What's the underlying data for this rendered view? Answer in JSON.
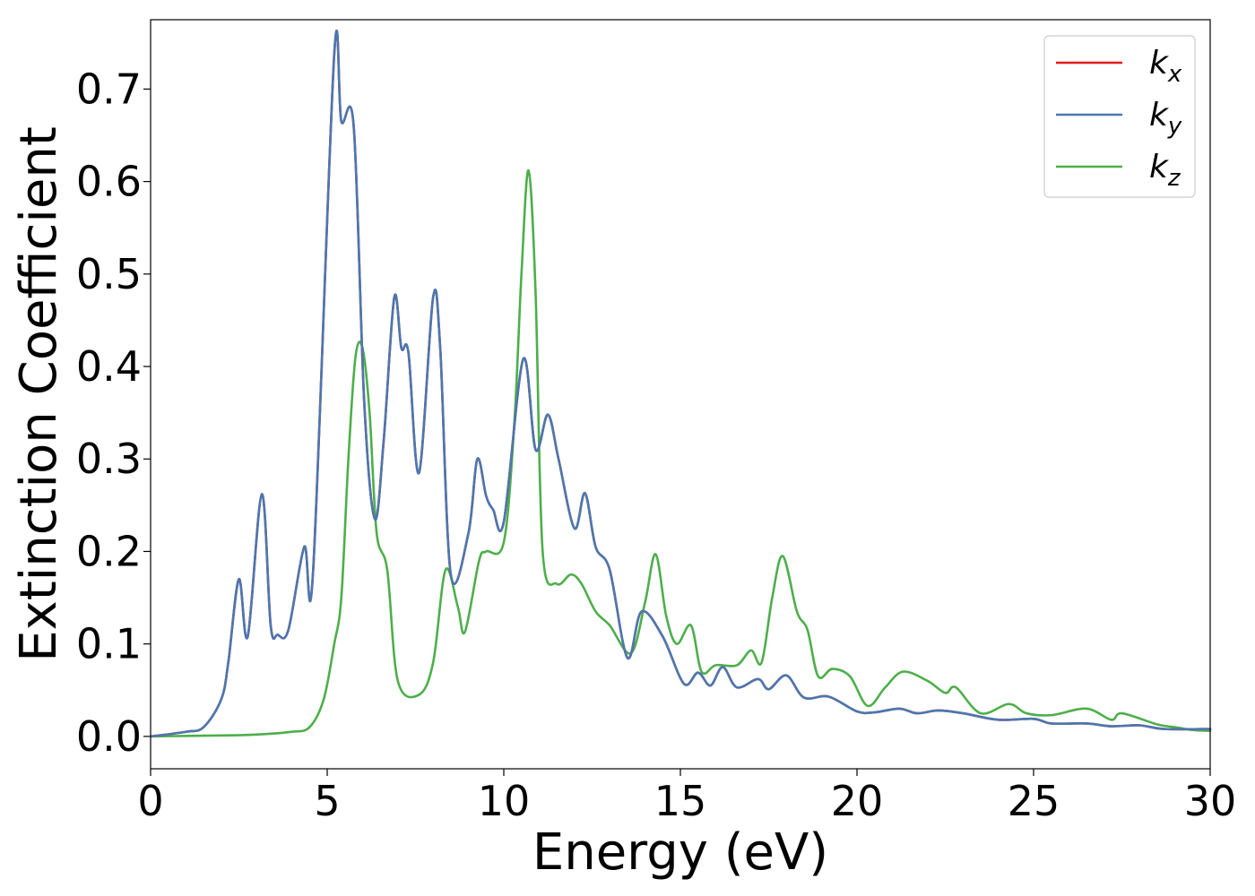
{
  "chart_data": {
    "type": "line",
    "title": "",
    "xlabel": "Energy (eV)",
    "ylabel": "Extinction Coefficient",
    "xlim": [
      0,
      30
    ],
    "ylim": [
      -0.035,
      0.775
    ],
    "xticks": [
      0,
      5,
      10,
      15,
      20,
      25,
      30
    ],
    "xtick_labels": [
      "0",
      "5",
      "10",
      "15",
      "20",
      "25",
      "30"
    ],
    "yticks": [
      0.0,
      0.1,
      0.2,
      0.3,
      0.4,
      0.5,
      0.6,
      0.7
    ],
    "ytick_labels": [
      "0.0",
      "0.1",
      "0.2",
      "0.3",
      "0.4",
      "0.5",
      "0.6",
      "0.7"
    ],
    "grid": false,
    "legend_position": "top-right",
    "series": [
      {
        "name": "k",
        "subscript": "x",
        "color": "#e41a1c",
        "x": [
          0,
          1,
          1.5,
          2,
          2.2,
          2.5,
          2.75,
          3.15,
          3.4,
          3.6,
          3.9,
          4.35,
          4.6,
          5.2,
          5.4,
          5.75,
          6.05,
          6.35,
          6.6,
          6.9,
          7.1,
          7.3,
          7.6,
          8.0,
          8.2,
          8.5,
          9.0,
          9.25,
          9.5,
          9.7,
          10.0,
          10.55,
          10.9,
          11.25,
          11.55,
          12.0,
          12.3,
          12.6,
          13.0,
          13.5,
          13.9,
          14.5,
          15.1,
          15.5,
          15.85,
          16.2,
          16.6,
          17.2,
          17.5,
          18.0,
          18.5,
          19.2,
          20.0,
          20.5,
          21.2,
          21.7,
          22.3,
          23.0,
          24.0,
          25.0,
          25.5,
          26.5,
          27.2,
          28.0,
          28.7,
          30.0
        ],
        "y": [
          0.0,
          0.005,
          0.01,
          0.04,
          0.08,
          0.17,
          0.108,
          0.262,
          0.12,
          0.11,
          0.115,
          0.205,
          0.178,
          0.738,
          0.665,
          0.66,
          0.36,
          0.235,
          0.32,
          0.475,
          0.42,
          0.415,
          0.285,
          0.475,
          0.42,
          0.175,
          0.22,
          0.3,
          0.26,
          0.245,
          0.232,
          0.408,
          0.31,
          0.348,
          0.3,
          0.225,
          0.263,
          0.205,
          0.18,
          0.085,
          0.135,
          0.108,
          0.057,
          0.069,
          0.055,
          0.075,
          0.053,
          0.062,
          0.051,
          0.066,
          0.042,
          0.043,
          0.027,
          0.026,
          0.03,
          0.025,
          0.028,
          0.025,
          0.018,
          0.019,
          0.014,
          0.014,
          0.011,
          0.012,
          0.008,
          0.008
        ]
      },
      {
        "name": "k",
        "subscript": "y",
        "color": "#4a78b0",
        "x": [
          0,
          1,
          1.5,
          2,
          2.2,
          2.5,
          2.75,
          3.15,
          3.4,
          3.6,
          3.9,
          4.35,
          4.6,
          5.2,
          5.4,
          5.75,
          6.05,
          6.35,
          6.6,
          6.9,
          7.1,
          7.3,
          7.6,
          8.0,
          8.2,
          8.5,
          9.0,
          9.25,
          9.5,
          9.7,
          10.0,
          10.55,
          10.9,
          11.25,
          11.55,
          12.0,
          12.3,
          12.6,
          13.0,
          13.5,
          13.9,
          14.5,
          15.1,
          15.5,
          15.85,
          16.2,
          16.6,
          17.2,
          17.5,
          18.0,
          18.5,
          19.2,
          20.0,
          20.5,
          21.2,
          21.7,
          22.3,
          23.0,
          24.0,
          25.0,
          25.5,
          26.5,
          27.2,
          28.0,
          28.7,
          30.0
        ],
        "y": [
          0.0,
          0.005,
          0.01,
          0.04,
          0.08,
          0.17,
          0.108,
          0.262,
          0.12,
          0.11,
          0.115,
          0.205,
          0.178,
          0.738,
          0.665,
          0.66,
          0.36,
          0.235,
          0.32,
          0.475,
          0.42,
          0.415,
          0.285,
          0.475,
          0.42,
          0.175,
          0.22,
          0.3,
          0.26,
          0.245,
          0.232,
          0.408,
          0.31,
          0.348,
          0.3,
          0.225,
          0.263,
          0.205,
          0.18,
          0.085,
          0.135,
          0.108,
          0.057,
          0.069,
          0.055,
          0.075,
          0.053,
          0.062,
          0.051,
          0.066,
          0.042,
          0.043,
          0.027,
          0.026,
          0.03,
          0.025,
          0.028,
          0.025,
          0.018,
          0.019,
          0.014,
          0.014,
          0.011,
          0.012,
          0.008,
          0.008
        ]
      },
      {
        "name": "k",
        "subscript": "z",
        "color": "#4daf4a",
        "x": [
          0,
          2,
          3,
          4,
          4.5,
          4.9,
          5.2,
          5.4,
          5.6,
          5.8,
          6.0,
          6.2,
          6.4,
          6.7,
          7.0,
          7.6,
          8.0,
          8.35,
          8.7,
          8.9,
          9.3,
          9.5,
          10.0,
          10.3,
          10.5,
          10.7,
          10.9,
          11.1,
          11.5,
          11.9,
          12.2,
          12.6,
          13.0,
          13.6,
          14.0,
          14.3,
          14.6,
          14.9,
          15.3,
          15.6,
          16.0,
          16.6,
          17.0,
          17.3,
          17.6,
          17.9,
          18.3,
          18.6,
          18.9,
          19.3,
          19.8,
          20.3,
          20.8,
          21.3,
          22.0,
          22.5,
          22.8,
          23.5,
          24.3,
          24.8,
          25.5,
          26.5,
          27.2,
          27.5,
          28.5,
          29.0,
          29.5,
          30.0
        ],
        "y": [
          0.0,
          0.001,
          0.002,
          0.005,
          0.01,
          0.04,
          0.1,
          0.15,
          0.3,
          0.41,
          0.42,
          0.35,
          0.22,
          0.18,
          0.06,
          0.045,
          0.08,
          0.18,
          0.14,
          0.113,
          0.19,
          0.2,
          0.21,
          0.34,
          0.5,
          0.612,
          0.48,
          0.2,
          0.165,
          0.175,
          0.165,
          0.135,
          0.12,
          0.09,
          0.145,
          0.197,
          0.13,
          0.1,
          0.12,
          0.07,
          0.077,
          0.077,
          0.093,
          0.08,
          0.15,
          0.195,
          0.135,
          0.115,
          0.065,
          0.073,
          0.065,
          0.033,
          0.053,
          0.07,
          0.06,
          0.047,
          0.053,
          0.025,
          0.035,
          0.025,
          0.023,
          0.03,
          0.018,
          0.025,
          0.013,
          0.01,
          0.007,
          0.006
        ]
      }
    ]
  }
}
